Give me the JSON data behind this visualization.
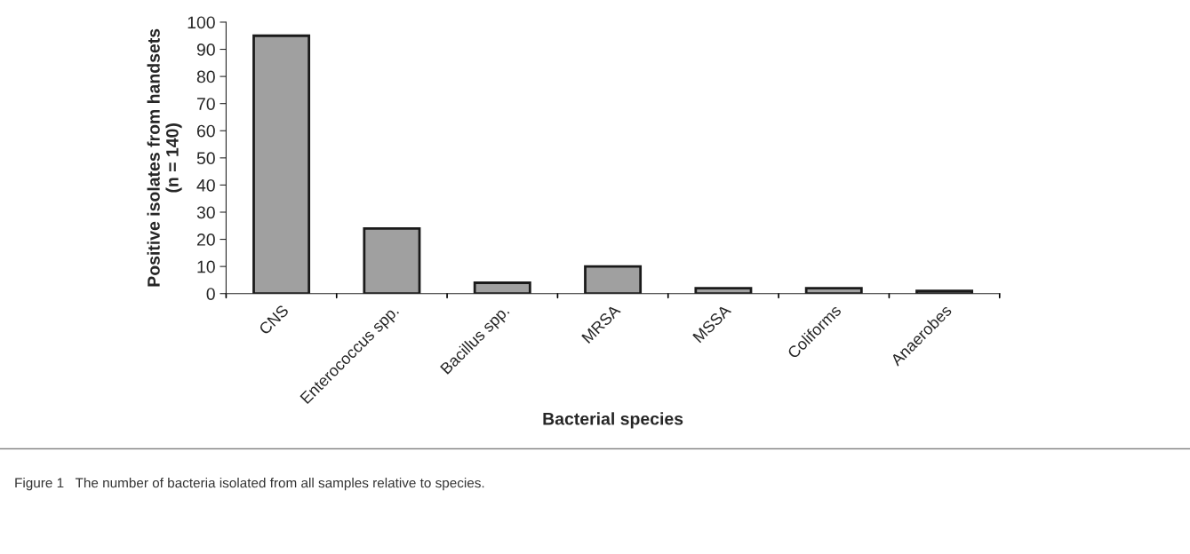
{
  "chart_data": {
    "type": "bar",
    "categories": [
      "CNS",
      "Enterococcus spp.",
      "Bacillus spp.",
      "MRSA",
      "MSSA",
      "Coliforms",
      "Anaerobes"
    ],
    "values": [
      95,
      24,
      4,
      10,
      2,
      2,
      1
    ],
    "color": "#a0a0a0",
    "xlabel": "Bacterial species",
    "ylabel": "Positive isolates from handsets\n(n = 140)",
    "ylim": [
      0,
      100
    ],
    "yticks": [
      0,
      10,
      20,
      30,
      40,
      50,
      60,
      70,
      80,
      90,
      100
    ],
    "grid": false,
    "annotations": [
      "Figure 1   The number of bacteria isolated from all samples relative to species."
    ]
  }
}
